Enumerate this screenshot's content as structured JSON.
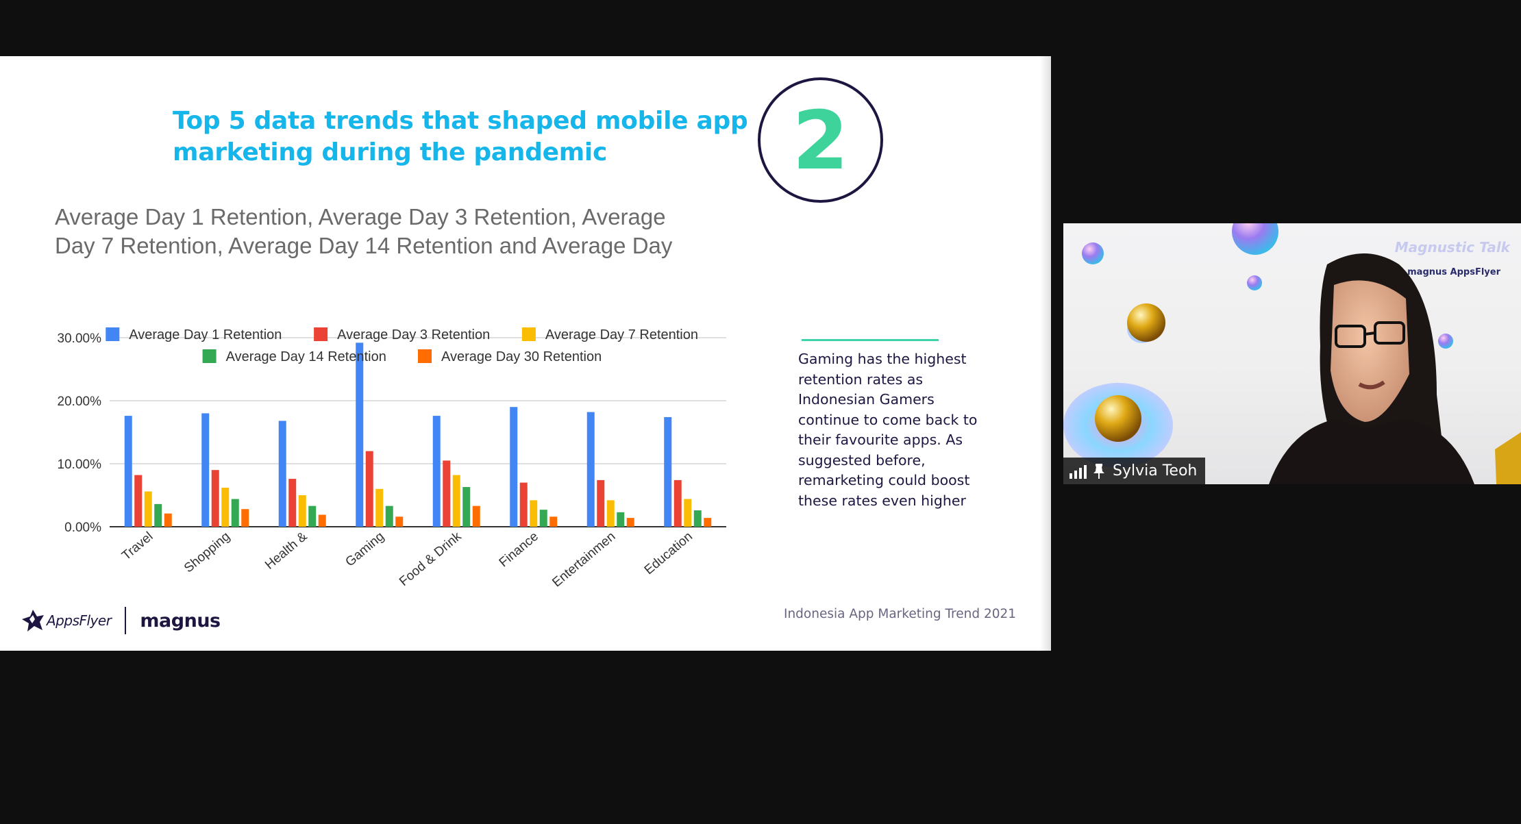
{
  "slide": {
    "title_lines": [
      "Top 5 data trends that shaped mobile app",
      "marketing during the pandemic"
    ],
    "number": "2",
    "chart_heading_lines": [
      "Average Day 1 Retention, Average Day 3 Retention, Average",
      "Day 7 Retention, Average Day 14 Retention and Average Day"
    ],
    "note_lines": [
      "Gaming has the highest",
      "retention rates as",
      "Indonesian Gamers",
      "continue to come back to",
      "their favourite apps. As",
      "suggested before,",
      "remarketing could boost",
      "these rates even higher"
    ],
    "logos": {
      "appsflyer": "AppsFlyer",
      "magnus": "magnus"
    },
    "footer": "Indonesia App Marketing Trend 2021"
  },
  "chart_data": {
    "type": "bar",
    "title": "Average Day 1 Retention, Average Day 3 Retention, Average Day 7 Retention, Average Day 14 Retention and Average Day",
    "categories": [
      "Travel",
      "Shopping",
      "Health &",
      "Gaming",
      "Food & Drink",
      "Finance",
      "Entertainmen",
      "Education"
    ],
    "yticks": [
      "30.00%",
      "20.00%",
      "10.00%",
      "0.00%"
    ],
    "ylim": [
      0,
      30
    ],
    "grid": true,
    "legend_position": "top",
    "series": [
      {
        "name": "Average Day 1 Retention",
        "color": "#4285f4",
        "values": [
          17.6,
          18.0,
          16.8,
          29.2,
          17.6,
          19.0,
          18.2,
          17.4
        ]
      },
      {
        "name": "Average Day 3 Retention",
        "color": "#ea4335",
        "values": [
          8.2,
          9.0,
          7.6,
          12.0,
          10.5,
          7.0,
          7.4,
          7.4
        ]
      },
      {
        "name": "Average Day 7 Retention",
        "color": "#fbbc04",
        "values": [
          5.6,
          6.2,
          5.0,
          6.0,
          8.2,
          4.2,
          4.2,
          4.4
        ]
      },
      {
        "name": "Average Day 14 Retention",
        "color": "#34a853",
        "values": [
          3.6,
          4.4,
          3.3,
          3.3,
          6.3,
          2.7,
          2.3,
          2.6
        ]
      },
      {
        "name": "Average Day 30 Retention",
        "color": "#ff6d01",
        "values": [
          2.1,
          2.8,
          1.9,
          1.6,
          3.3,
          1.6,
          1.4,
          1.4
        ]
      }
    ]
  },
  "video": {
    "participant_name": "Sylvia Teoh",
    "backdrop_brand": "Magnustic Talk",
    "backdrop_logos": "magnus AppsFlyer"
  }
}
